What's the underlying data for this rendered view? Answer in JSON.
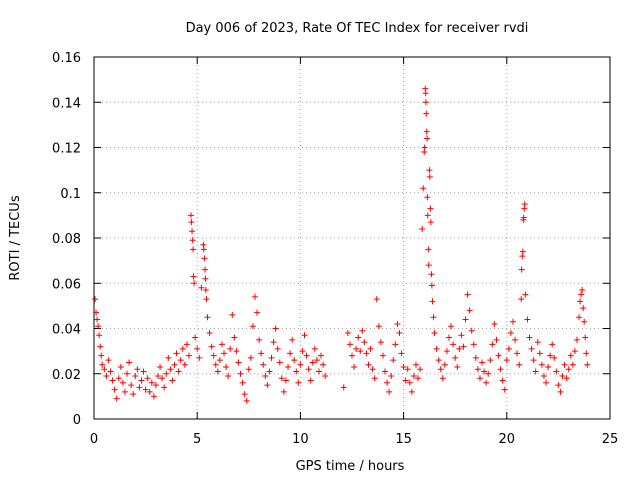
{
  "chart_data": {
    "type": "scatter",
    "title": "Day 006 of 2023, Rate Of TEC Index for receiver rvdi",
    "xlabel": "GPS time / hours",
    "ylabel": "ROTI / TECUs",
    "xlim": [
      0,
      25
    ],
    "ylim": [
      0,
      0.16
    ],
    "xticks": [
      0,
      5,
      10,
      15,
      20,
      25
    ],
    "xtick_labels": [
      "0",
      "5",
      "10",
      "15",
      "20",
      "25"
    ],
    "yticks": [
      0,
      0.02,
      0.04,
      0.06,
      0.08,
      0.1,
      0.12,
      0.14,
      0.16
    ],
    "ytick_labels": [
      "0",
      "0.02",
      "0.04",
      "0.06",
      "0.08",
      "0.1",
      "0.12",
      "0.14",
      "0.16"
    ],
    "grid": true,
    "marker": "+",
    "series": [
      {
        "name": "ROTI",
        "color": "#ff0000",
        "points": [
          [
            0.05,
            0.053
          ],
          [
            0.1,
            0.047
          ],
          [
            0.15,
            0.044
          ],
          [
            0.2,
            0.041
          ],
          [
            0.25,
            0.037
          ],
          [
            0.3,
            0.032
          ],
          [
            0.35,
            0.028
          ],
          [
            0.4,
            0.024
          ],
          [
            0.5,
            0.022
          ],
          [
            0.6,
            0.019
          ],
          [
            0.7,
            0.026
          ],
          [
            0.8,
            0.021
          ],
          [
            0.9,
            0.017
          ],
          [
            1.0,
            0.013
          ],
          [
            1.1,
            0.009
          ],
          [
            1.2,
            0.018
          ],
          [
            1.3,
            0.023
          ],
          [
            1.4,
            0.016
          ],
          [
            1.5,
            0.012
          ],
          [
            1.6,
            0.02
          ],
          [
            1.7,
            0.025
          ],
          [
            1.8,
            0.015
          ],
          [
            1.9,
            0.011
          ],
          [
            2.0,
            0.019
          ],
          [
            2.1,
            0.022
          ],
          [
            2.2,
            0.014
          ],
          [
            2.3,
            0.017
          ],
          [
            2.4,
            0.021
          ],
          [
            2.5,
            0.013
          ],
          [
            2.6,
            0.018
          ],
          [
            2.7,
            0.012
          ],
          [
            2.8,
            0.016
          ],
          [
            2.9,
            0.01
          ],
          [
            3.0,
            0.015
          ],
          [
            3.1,
            0.019
          ],
          [
            3.2,
            0.023
          ],
          [
            3.3,
            0.018
          ],
          [
            3.4,
            0.014
          ],
          [
            3.5,
            0.02
          ],
          [
            3.6,
            0.027
          ],
          [
            3.7,
            0.022
          ],
          [
            3.8,
            0.017
          ],
          [
            3.9,
            0.024
          ],
          [
            4.0,
            0.029
          ],
          [
            4.1,
            0.021
          ],
          [
            4.2,
            0.026
          ],
          [
            4.3,
            0.031
          ],
          [
            4.4,
            0.024
          ],
          [
            4.5,
            0.033
          ],
          [
            4.6,
            0.028
          ],
          [
            4.7,
            0.09
          ],
          [
            4.72,
            0.087
          ],
          [
            4.75,
            0.083
          ],
          [
            4.78,
            0.079
          ],
          [
            4.8,
            0.075
          ],
          [
            4.82,
            0.063
          ],
          [
            4.85,
            0.06
          ],
          [
            4.9,
            0.036
          ],
          [
            5.0,
            0.031
          ],
          [
            5.1,
            0.027
          ],
          [
            5.2,
            0.058
          ],
          [
            5.3,
            0.077
          ],
          [
            5.32,
            0.075
          ],
          [
            5.35,
            0.071
          ],
          [
            5.38,
            0.066
          ],
          [
            5.4,
            0.062
          ],
          [
            5.42,
            0.057
          ],
          [
            5.45,
            0.053
          ],
          [
            5.5,
            0.045
          ],
          [
            5.6,
            0.038
          ],
          [
            5.7,
            0.032
          ],
          [
            5.8,
            0.028
          ],
          [
            5.9,
            0.024
          ],
          [
            6.0,
            0.021
          ],
          [
            6.1,
            0.026
          ],
          [
            6.2,
            0.033
          ],
          [
            6.3,
            0.029
          ],
          [
            6.4,
            0.023
          ],
          [
            6.5,
            0.019
          ],
          [
            6.6,
            0.031
          ],
          [
            6.7,
            0.046
          ],
          [
            6.8,
            0.036
          ],
          [
            6.9,
            0.03
          ],
          [
            7.0,
            0.025
          ],
          [
            7.1,
            0.02
          ],
          [
            7.2,
            0.016
          ],
          [
            7.3,
            0.011
          ],
          [
            7.4,
            0.008
          ],
          [
            7.5,
            0.022
          ],
          [
            7.6,
            0.027
          ],
          [
            7.7,
            0.041
          ],
          [
            7.8,
            0.054
          ],
          [
            7.9,
            0.047
          ],
          [
            8.0,
            0.035
          ],
          [
            8.1,
            0.029
          ],
          [
            8.2,
            0.024
          ],
          [
            8.3,
            0.019
          ],
          [
            8.4,
            0.015
          ],
          [
            8.5,
            0.021
          ],
          [
            8.6,
            0.027
          ],
          [
            8.7,
            0.034
          ],
          [
            8.8,
            0.04
          ],
          [
            8.9,
            0.031
          ],
          [
            9.0,
            0.025
          ],
          [
            9.1,
            0.018
          ],
          [
            9.2,
            0.012
          ],
          [
            9.3,
            0.017
          ],
          [
            9.4,
            0.023
          ],
          [
            9.5,
            0.029
          ],
          [
            9.6,
            0.035
          ],
          [
            9.7,
            0.026
          ],
          [
            9.8,
            0.021
          ],
          [
            9.9,
            0.016
          ],
          [
            10.0,
            0.024
          ],
          [
            10.1,
            0.03
          ],
          [
            10.2,
            0.037
          ],
          [
            10.3,
            0.028
          ],
          [
            10.4,
            0.022
          ],
          [
            10.5,
            0.017
          ],
          [
            10.6,
            0.025
          ],
          [
            10.7,
            0.031
          ],
          [
            10.8,
            0.026
          ],
          [
            10.9,
            0.021
          ],
          [
            11.0,
            0.028
          ],
          [
            11.1,
            0.024
          ],
          [
            11.2,
            0.019
          ],
          [
            12.1,
            0.014
          ],
          [
            12.3,
            0.038
          ],
          [
            12.4,
            0.033
          ],
          [
            12.5,
            0.028
          ],
          [
            12.6,
            0.023
          ],
          [
            12.7,
            0.031
          ],
          [
            12.8,
            0.036
          ],
          [
            12.9,
            0.03
          ],
          [
            13.0,
            0.039
          ],
          [
            13.1,
            0.034
          ],
          [
            13.2,
            0.029
          ],
          [
            13.3,
            0.024
          ],
          [
            13.4,
            0.031
          ],
          [
            13.5,
            0.022
          ],
          [
            13.6,
            0.018
          ],
          [
            13.7,
            0.053
          ],
          [
            13.8,
            0.041
          ],
          [
            13.9,
            0.034
          ],
          [
            14.0,
            0.028
          ],
          [
            14.1,
            0.021
          ],
          [
            14.2,
            0.016
          ],
          [
            14.3,
            0.012
          ],
          [
            14.4,
            0.019
          ],
          [
            14.5,
            0.026
          ],
          [
            14.6,
            0.033
          ],
          [
            14.7,
            0.042
          ],
          [
            14.8,
            0.038
          ],
          [
            14.9,
            0.029
          ],
          [
            15.0,
            0.023
          ],
          [
            15.1,
            0.017
          ],
          [
            15.2,
            0.022
          ],
          [
            15.3,
            0.016
          ],
          [
            15.4,
            0.012
          ],
          [
            15.5,
            0.019
          ],
          [
            15.6,
            0.024
          ],
          [
            15.7,
            0.018
          ],
          [
            15.8,
            0.022
          ],
          [
            15.9,
            0.084
          ],
          [
            15.95,
            0.102
          ],
          [
            16.0,
            0.118
          ],
          [
            16.02,
            0.12
          ],
          [
            16.05,
            0.146
          ],
          [
            16.07,
            0.144
          ],
          [
            16.08,
            0.14
          ],
          [
            16.1,
            0.135
          ],
          [
            16.12,
            0.127
          ],
          [
            16.14,
            0.124
          ],
          [
            16.15,
            0.098
          ],
          [
            16.17,
            0.09
          ],
          [
            16.2,
            0.075
          ],
          [
            16.22,
            0.068
          ],
          [
            16.25,
            0.11
          ],
          [
            16.27,
            0.107
          ],
          [
            16.3,
            0.093
          ],
          [
            16.32,
            0.087
          ],
          [
            16.35,
            0.064
          ],
          [
            16.37,
            0.059
          ],
          [
            16.4,
            0.052
          ],
          [
            16.45,
            0.045
          ],
          [
            16.5,
            0.038
          ],
          [
            16.6,
            0.031
          ],
          [
            16.7,
            0.026
          ],
          [
            16.8,
            0.022
          ],
          [
            16.9,
            0.018
          ],
          [
            17.0,
            0.024
          ],
          [
            17.1,
            0.03
          ],
          [
            17.2,
            0.036
          ],
          [
            17.3,
            0.041
          ],
          [
            17.4,
            0.033
          ],
          [
            17.5,
            0.027
          ],
          [
            17.6,
            0.023
          ],
          [
            17.7,
            0.031
          ],
          [
            17.8,
            0.037
          ],
          [
            17.9,
            0.032
          ],
          [
            18.0,
            0.044
          ],
          [
            18.1,
            0.055
          ],
          [
            18.2,
            0.048
          ],
          [
            18.3,
            0.039
          ],
          [
            18.4,
            0.033
          ],
          [
            18.5,
            0.027
          ],
          [
            18.6,
            0.022
          ],
          [
            18.7,
            0.018
          ],
          [
            18.8,
            0.025
          ],
          [
            18.9,
            0.021
          ],
          [
            19.0,
            0.016
          ],
          [
            19.1,
            0.02
          ],
          [
            19.2,
            0.026
          ],
          [
            19.3,
            0.033
          ],
          [
            19.4,
            0.042
          ],
          [
            19.5,
            0.035
          ],
          [
            19.6,
            0.028
          ],
          [
            19.7,
            0.022
          ],
          [
            19.8,
            0.017
          ],
          [
            19.9,
            0.013
          ],
          [
            20.0,
            0.026
          ],
          [
            20.1,
            0.031
          ],
          [
            20.2,
            0.038
          ],
          [
            20.3,
            0.043
          ],
          [
            20.4,
            0.035
          ],
          [
            20.5,
            0.029
          ],
          [
            20.6,
            0.024
          ],
          [
            20.7,
            0.053
          ],
          [
            20.72,
            0.066
          ],
          [
            20.75,
            0.072
          ],
          [
            20.78,
            0.074
          ],
          [
            20.8,
            0.088
          ],
          [
            20.82,
            0.089
          ],
          [
            20.85,
            0.093
          ],
          [
            20.87,
            0.095
          ],
          [
            20.9,
            0.055
          ],
          [
            21.0,
            0.044
          ],
          [
            21.1,
            0.036
          ],
          [
            21.2,
            0.031
          ],
          [
            21.3,
            0.026
          ],
          [
            21.4,
            0.021
          ],
          [
            21.5,
            0.034
          ],
          [
            21.6,
            0.029
          ],
          [
            21.7,
            0.024
          ],
          [
            21.8,
            0.019
          ],
          [
            21.9,
            0.016
          ],
          [
            22.0,
            0.023
          ],
          [
            22.1,
            0.028
          ],
          [
            22.2,
            0.033
          ],
          [
            22.3,
            0.027
          ],
          [
            22.4,
            0.021
          ],
          [
            22.5,
            0.015
          ],
          [
            22.6,
            0.012
          ],
          [
            22.7,
            0.019
          ],
          [
            22.8,
            0.024
          ],
          [
            22.9,
            0.018
          ],
          [
            23.0,
            0.022
          ],
          [
            23.1,
            0.028
          ],
          [
            23.2,
            0.024
          ],
          [
            23.3,
            0.03
          ],
          [
            23.4,
            0.035
          ],
          [
            23.5,
            0.045
          ],
          [
            23.55,
            0.052
          ],
          [
            23.6,
            0.055
          ],
          [
            23.65,
            0.057
          ],
          [
            23.7,
            0.049
          ],
          [
            23.75,
            0.043
          ],
          [
            23.8,
            0.036
          ],
          [
            23.85,
            0.029
          ],
          [
            23.9,
            0.024
          ]
        ]
      }
    ]
  }
}
